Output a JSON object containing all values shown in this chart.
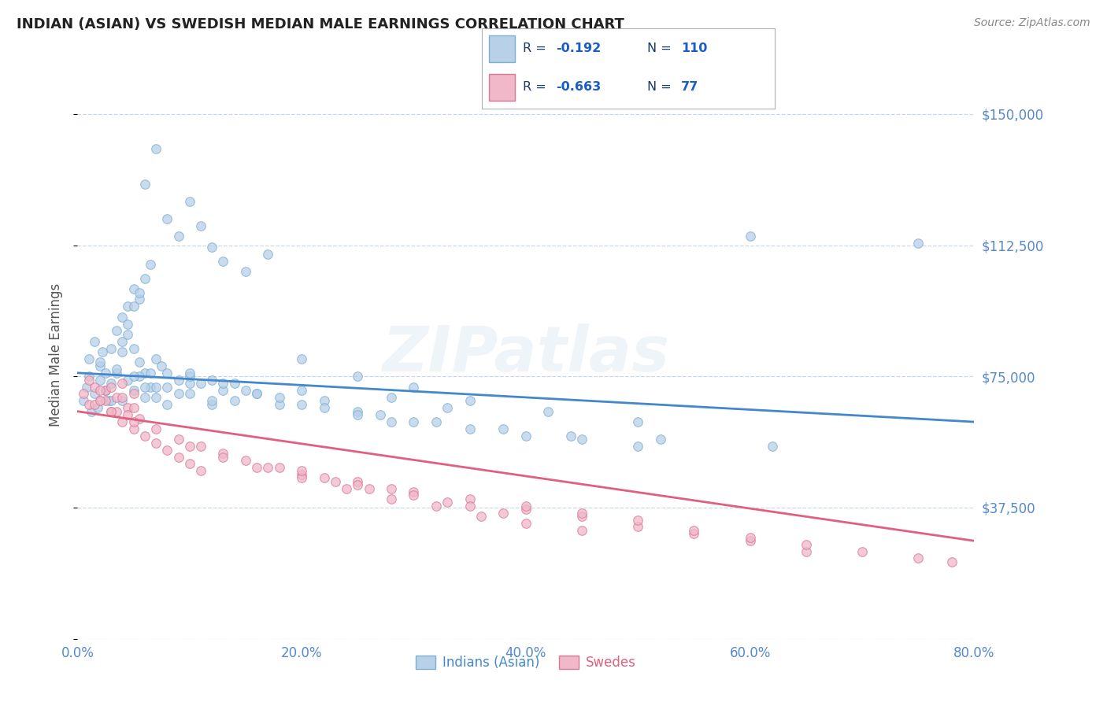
{
  "title": "INDIAN (ASIAN) VS SWEDISH MEDIAN MALE EARNINGS CORRELATION CHART",
  "source_text": "Source: ZipAtlas.com",
  "ylabel": "Median Male Earnings",
  "xlim": [
    0.0,
    0.8
  ],
  "ylim": [
    0,
    162500
  ],
  "yticks": [
    0,
    37500,
    75000,
    112500,
    150000
  ],
  "ytick_labels": [
    "",
    "$37,500",
    "$75,000",
    "$112,500",
    "$150,000"
  ],
  "xtick_labels": [
    "0.0%",
    "20.0%",
    "40.0%",
    "60.0%",
    "80.0%"
  ],
  "xticks": [
    0.0,
    0.2,
    0.4,
    0.6,
    0.8
  ],
  "background_color": "#ffffff",
  "grid_color": "#c8d8e8",
  "watermark_text": "ZIPatlas",
  "legend_r_val1": "-0.192",
  "legend_n_val1": "110",
  "legend_r_val2": "-0.663",
  "legend_n_val2": "77",
  "legend_label1": "Indians (Asian)",
  "legend_label2": "Swedes",
  "color_blue_fill": "#b8d0e8",
  "color_blue_edge": "#7bafd4",
  "color_pink_fill": "#f0b8c8",
  "color_pink_edge": "#d87898",
  "line_color_blue": "#4488cc",
  "line_color_pink": "#e06080",
  "title_color": "#222222",
  "axis_label_color": "#555555",
  "tick_label_color": "#5588cc",
  "legend_text_color": "#1a3a6a",
  "legend_val_color": "#1a5cc8",
  "blue_line_y0": 76000,
  "blue_line_y1": 62000,
  "pink_line_y0": 65000,
  "pink_line_y1": 28000,
  "indian_x": [
    0.005,
    0.008,
    0.01,
    0.012,
    0.015,
    0.018,
    0.02,
    0.022,
    0.025,
    0.028,
    0.01,
    0.015,
    0.02,
    0.025,
    0.03,
    0.035,
    0.04,
    0.045,
    0.05,
    0.055,
    0.02,
    0.025,
    0.03,
    0.035,
    0.04,
    0.045,
    0.05,
    0.055,
    0.06,
    0.065,
    0.03,
    0.035,
    0.04,
    0.045,
    0.05,
    0.055,
    0.06,
    0.065,
    0.07,
    0.075,
    0.04,
    0.045,
    0.05,
    0.055,
    0.06,
    0.065,
    0.07,
    0.08,
    0.09,
    0.1,
    0.05,
    0.06,
    0.07,
    0.08,
    0.09,
    0.1,
    0.11,
    0.12,
    0.13,
    0.14,
    0.06,
    0.07,
    0.08,
    0.09,
    0.1,
    0.11,
    0.12,
    0.13,
    0.15,
    0.17,
    0.08,
    0.1,
    0.12,
    0.14,
    0.16,
    0.18,
    0.2,
    0.22,
    0.25,
    0.28,
    0.1,
    0.13,
    0.16,
    0.2,
    0.25,
    0.3,
    0.35,
    0.4,
    0.45,
    0.5,
    0.2,
    0.25,
    0.3,
    0.35,
    0.42,
    0.5,
    0.28,
    0.33,
    0.6,
    0.75,
    0.12,
    0.15,
    0.18,
    0.22,
    0.27,
    0.32,
    0.38,
    0.44,
    0.52,
    0.62
  ],
  "indian_y": [
    68000,
    72000,
    75000,
    65000,
    70000,
    66000,
    78000,
    82000,
    71000,
    68000,
    80000,
    85000,
    79000,
    76000,
    83000,
    88000,
    92000,
    95000,
    100000,
    97000,
    74000,
    71000,
    68000,
    76000,
    85000,
    90000,
    95000,
    99000,
    103000,
    107000,
    73000,
    77000,
    82000,
    87000,
    83000,
    79000,
    76000,
    72000,
    80000,
    78000,
    68000,
    74000,
    71000,
    75000,
    69000,
    76000,
    72000,
    67000,
    70000,
    73000,
    75000,
    72000,
    69000,
    76000,
    74000,
    70000,
    73000,
    67000,
    71000,
    68000,
    130000,
    140000,
    120000,
    115000,
    125000,
    118000,
    112000,
    108000,
    105000,
    110000,
    72000,
    75000,
    68000,
    73000,
    70000,
    67000,
    71000,
    68000,
    65000,
    62000,
    76000,
    73000,
    70000,
    67000,
    64000,
    62000,
    60000,
    58000,
    57000,
    55000,
    80000,
    75000,
    72000,
    68000,
    65000,
    62000,
    69000,
    66000,
    115000,
    113000,
    74000,
    71000,
    69000,
    66000,
    64000,
    62000,
    60000,
    58000,
    57000,
    55000
  ],
  "swedish_x": [
    0.005,
    0.01,
    0.015,
    0.02,
    0.025,
    0.03,
    0.035,
    0.04,
    0.045,
    0.05,
    0.01,
    0.015,
    0.02,
    0.025,
    0.03,
    0.035,
    0.04,
    0.045,
    0.05,
    0.055,
    0.02,
    0.03,
    0.04,
    0.05,
    0.06,
    0.07,
    0.08,
    0.09,
    0.1,
    0.11,
    0.05,
    0.07,
    0.09,
    0.11,
    0.13,
    0.15,
    0.17,
    0.2,
    0.23,
    0.26,
    0.1,
    0.13,
    0.16,
    0.2,
    0.24,
    0.28,
    0.32,
    0.36,
    0.4,
    0.45,
    0.2,
    0.25,
    0.3,
    0.35,
    0.4,
    0.45,
    0.5,
    0.55,
    0.6,
    0.65,
    0.4,
    0.45,
    0.5,
    0.55,
    0.6,
    0.65,
    0.7,
    0.75,
    0.78,
    0.25,
    0.3,
    0.35,
    0.28,
    0.22,
    0.18,
    0.33,
    0.38
  ],
  "swedish_y": [
    70000,
    67000,
    72000,
    68000,
    71000,
    65000,
    69000,
    73000,
    66000,
    70000,
    74000,
    67000,
    71000,
    68000,
    72000,
    65000,
    69000,
    64000,
    66000,
    63000,
    68000,
    65000,
    62000,
    60000,
    58000,
    56000,
    54000,
    52000,
    50000,
    48000,
    62000,
    60000,
    57000,
    55000,
    53000,
    51000,
    49000,
    47000,
    45000,
    43000,
    55000,
    52000,
    49000,
    46000,
    43000,
    40000,
    38000,
    35000,
    33000,
    31000,
    48000,
    45000,
    42000,
    40000,
    37000,
    35000,
    32000,
    30000,
    28000,
    25000,
    38000,
    36000,
    34000,
    31000,
    29000,
    27000,
    25000,
    23000,
    22000,
    44000,
    41000,
    38000,
    43000,
    46000,
    49000,
    39000,
    36000
  ]
}
